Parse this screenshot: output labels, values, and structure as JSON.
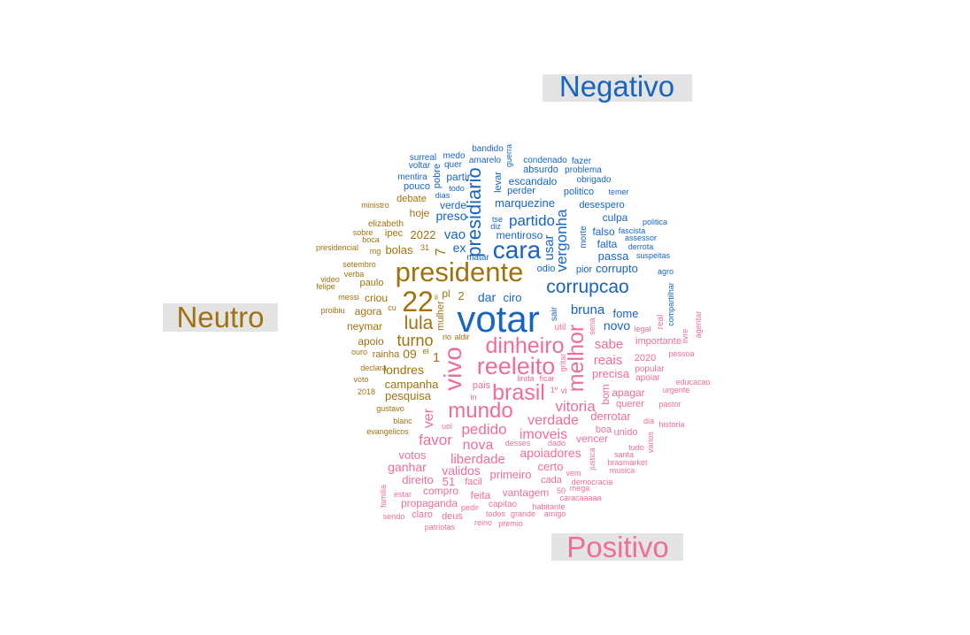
{
  "colors": {
    "negative": "#1765c1",
    "neutral": "#a0720f",
    "positive": "#ef6d9b",
    "label_bg": "#e4e4e4"
  },
  "groups": {
    "negative": {
      "label": "Negativo"
    },
    "neutral": {
      "label": "Neutro"
    },
    "positive": {
      "label": "Positivo"
    }
  },
  "words": {
    "negative": [
      "votar",
      "cara",
      "presidiario",
      "corrupcao",
      "partido",
      "vergonha",
      "preso",
      "vao",
      "mentiroso",
      "marquezine",
      "escandalo",
      "perder",
      "bruna",
      "sair",
      "fome",
      "novo",
      "dar",
      "ciro",
      "ex",
      "usar",
      "odio",
      "corrupto",
      "passa",
      "falta",
      "falso",
      "culpa",
      "desespero",
      "politico",
      "obrigado",
      "problema",
      "fazer",
      "condenado",
      "absurdo",
      "guerra",
      "amarelo",
      "bandido",
      "medo",
      "quer",
      "surreal",
      "voltar",
      "mentira",
      "pouco",
      "partir",
      "todo",
      "pobre",
      "dias",
      "levar",
      "verde",
      "diz",
      "tse",
      "matar",
      "morte",
      "fascista",
      "assessor",
      "derrota",
      "suspeitas",
      "agro",
      "politica",
      "temer",
      "compartilhar",
      "pior"
    ],
    "neutral": [
      "presidente",
      "22",
      "lula",
      "turno",
      "7",
      "2022",
      "bolas",
      "hoje",
      "debate",
      "ipec",
      "elizabeth",
      "boca",
      "mg",
      "sobre",
      "ministro",
      "presidencial",
      "setembro",
      "verba",
      "paulo",
      "video",
      "felipe",
      "criou",
      "messi",
      "proibiu",
      "agora",
      "cu",
      "neymar",
      "apoio",
      "rainha",
      "ouro",
      "09",
      "ei",
      "1",
      "londres",
      "declara",
      "voto",
      "2018",
      "campanha",
      "pesquisa",
      "gustavo",
      "blanc",
      "evangelicos",
      "pl",
      "2",
      "ii",
      "31",
      "mulher",
      "rio",
      "aldir"
    ],
    "positive": [
      "vivo",
      "reeleito",
      "dinheiro",
      "mundo",
      "brasil",
      "melhor",
      "pedido",
      "verdade",
      "vitoria",
      "favor",
      "nova",
      "imoveis",
      "liberdade",
      "apoiadores",
      "votos",
      "ganhar",
      "validos",
      "direito",
      "51",
      "facil",
      "primeiro",
      "certo",
      "compro",
      "feita",
      "vantagem",
      "cada",
      "ver",
      "sabe",
      "reais",
      "precisa",
      "bom",
      "2020",
      "apagar",
      "querer",
      "derrotar",
      "boa",
      "unido",
      "vencer",
      "importante",
      "popular",
      "apoiar",
      "real",
      "legal",
      "util",
      "gritar",
      "linda",
      "ficar",
      "pais",
      "in",
      "uol",
      "desses",
      "dado",
      "vem",
      "justica",
      "brasmarket",
      "musica",
      "tudo",
      "santa",
      "democracia",
      "mega",
      "caracaaaaa",
      "habitante",
      "capitao",
      "todos",
      "grande",
      "amigo",
      "pedir",
      "deus",
      "claro",
      "propaganda",
      "estar",
      "sendo",
      "familia",
      "patriotas",
      "reino",
      "premio",
      "50",
      "vi",
      "1º",
      "sena",
      "livre",
      "agentar",
      "pessoa",
      "educacao",
      "urgente",
      "pastor",
      "dia",
      "historia",
      "varios"
    ]
  }
}
